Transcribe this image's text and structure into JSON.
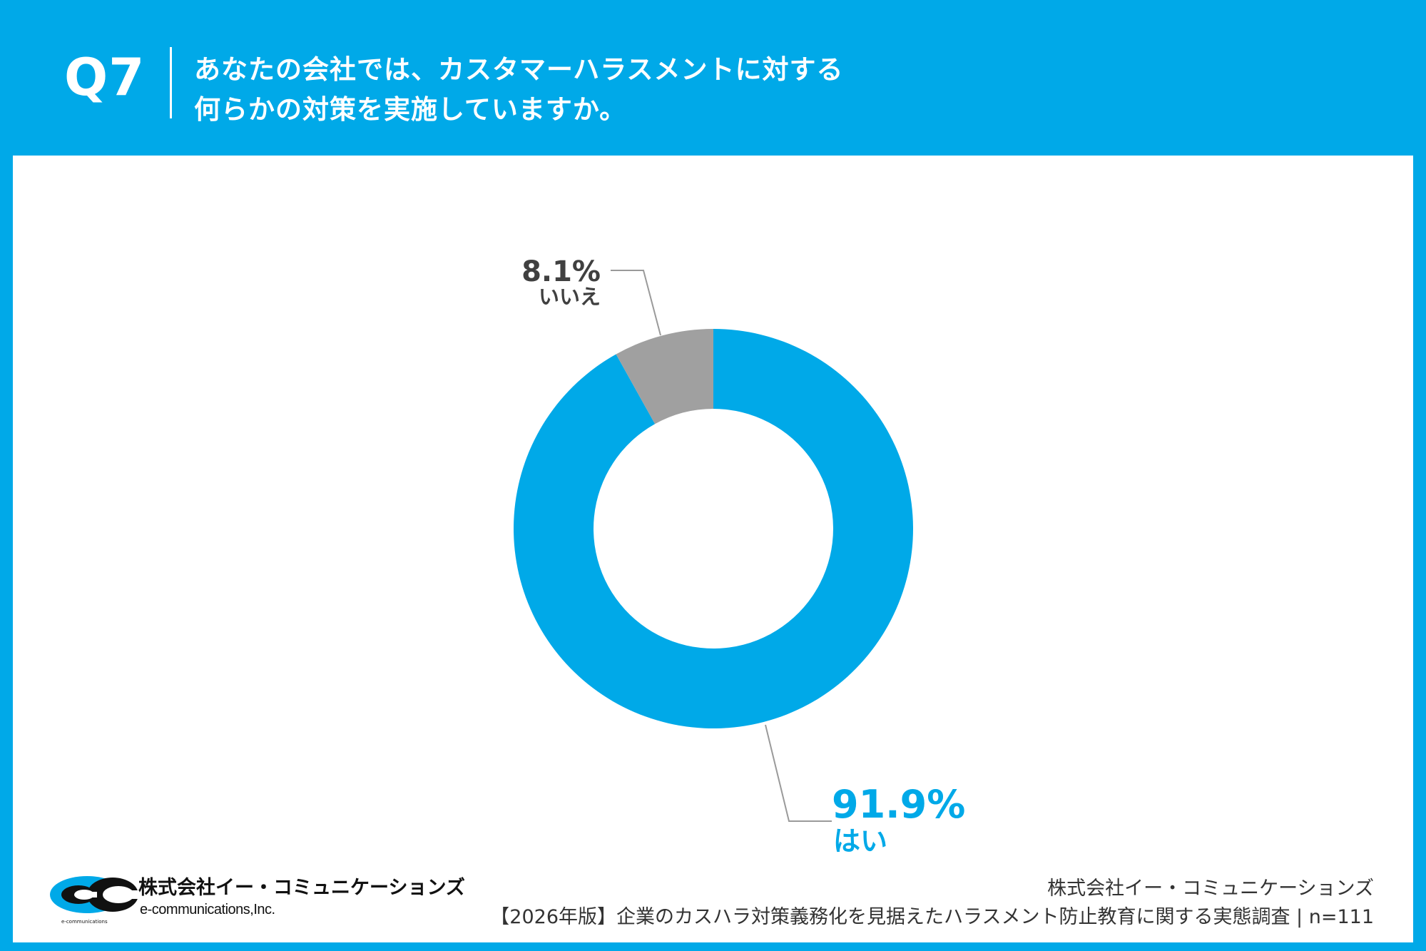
{
  "header": {
    "question_number": "Q7",
    "question_line1": "あなたの会社では、カスタマーハラスメントに対する",
    "question_line2": "何らかの対策を実施していますか。"
  },
  "chart_data": {
    "type": "pie",
    "donut": true,
    "slices": [
      {
        "label": "はい",
        "value": 91.9,
        "value_text": "91.9%",
        "color": "#00a9e8",
        "label_color": "#00a9e8"
      },
      {
        "label": "いいえ",
        "value": 8.1,
        "value_text": "8.1%",
        "color": "#a0a0a0",
        "label_color": "#404040"
      }
    ],
    "start": "top",
    "direction": "clockwise"
  },
  "footer": {
    "logo_name_jp": "株式会社イー・コミュニケーションズ",
    "logo_name_en": "e-communications,Inc.",
    "logo_tiny": "e-communications",
    "company": "株式会社イー・コミュニケーションズ",
    "source": "【2026年版】企業のカスハラ対策義務化を見据えたハラスメント防止教育に関する実態調査 | n=111"
  },
  "colors": {
    "brand_blue": "#00a9e8",
    "no_gray": "#a0a0a0",
    "leader_line": "#9a9a9a"
  }
}
